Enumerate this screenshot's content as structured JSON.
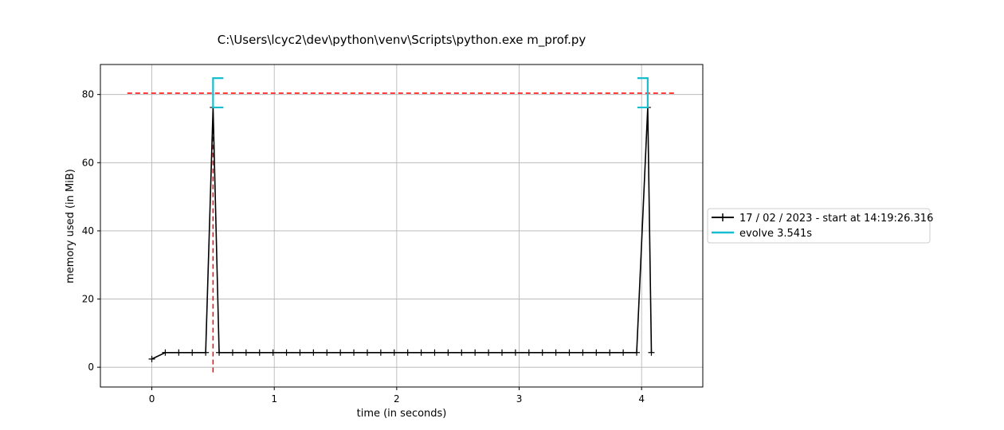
{
  "chart_data": {
    "type": "line",
    "title": "C:\\Users\\lcyc2\\dev\\python\\venv\\Scripts\\python.exe m_prof.py",
    "xlabel": "time (in seconds)",
    "ylabel": "memory used (in MiB)",
    "xlim": [
      -0.42,
      4.5
    ],
    "ylim": [
      -5.8,
      88.8
    ],
    "xticks": [
      0,
      1,
      2,
      3,
      4
    ],
    "yticks": [
      0,
      20,
      40,
      60,
      80
    ],
    "grid": true,
    "legend_position": "right",
    "series": [
      {
        "name": "17 / 02 / 2023 - start at 14:19:26.316",
        "color": "#000000",
        "marker": "+",
        "x": [
          0.0,
          0.11,
          0.22,
          0.33,
          0.44,
          0.5,
          0.55,
          0.66,
          0.77,
          0.88,
          0.99,
          1.1,
          1.21,
          1.32,
          1.43,
          1.54,
          1.65,
          1.76,
          1.87,
          1.98,
          2.09,
          2.2,
          2.31,
          2.42,
          2.53,
          2.64,
          2.75,
          2.86,
          2.97,
          3.08,
          3.19,
          3.3,
          3.41,
          3.52,
          3.63,
          3.74,
          3.85,
          3.96,
          4.05,
          4.08
        ],
        "y": [
          2.4,
          4.3,
          4.3,
          4.3,
          4.3,
          76.2,
          4.3,
          4.3,
          4.3,
          4.3,
          4.3,
          4.3,
          4.3,
          4.3,
          4.3,
          4.3,
          4.3,
          4.3,
          4.3,
          4.3,
          4.3,
          4.3,
          4.3,
          4.3,
          4.3,
          4.3,
          4.3,
          4.3,
          4.3,
          4.3,
          4.3,
          4.3,
          4.3,
          4.3,
          4.3,
          4.3,
          4.3,
          4.3,
          76.2,
          4.3
        ]
      },
      {
        "name": "evolve 3.541s",
        "color": "#17becf",
        "type": "function_brackets",
        "start": 0.5,
        "end": 4.05,
        "ymin": 76.2,
        "ymax": 84.8
      }
    ],
    "reference_lines": [
      {
        "orientation": "horizontal",
        "y": 80.4,
        "x_range": [
          -0.2,
          4.27
        ],
        "color": "#ff0000",
        "style": "dashed"
      },
      {
        "orientation": "vertical",
        "x": 0.5,
        "y_range": [
          -1.5,
          84.8
        ],
        "color": "#ff0000",
        "style": "dashed"
      }
    ]
  }
}
